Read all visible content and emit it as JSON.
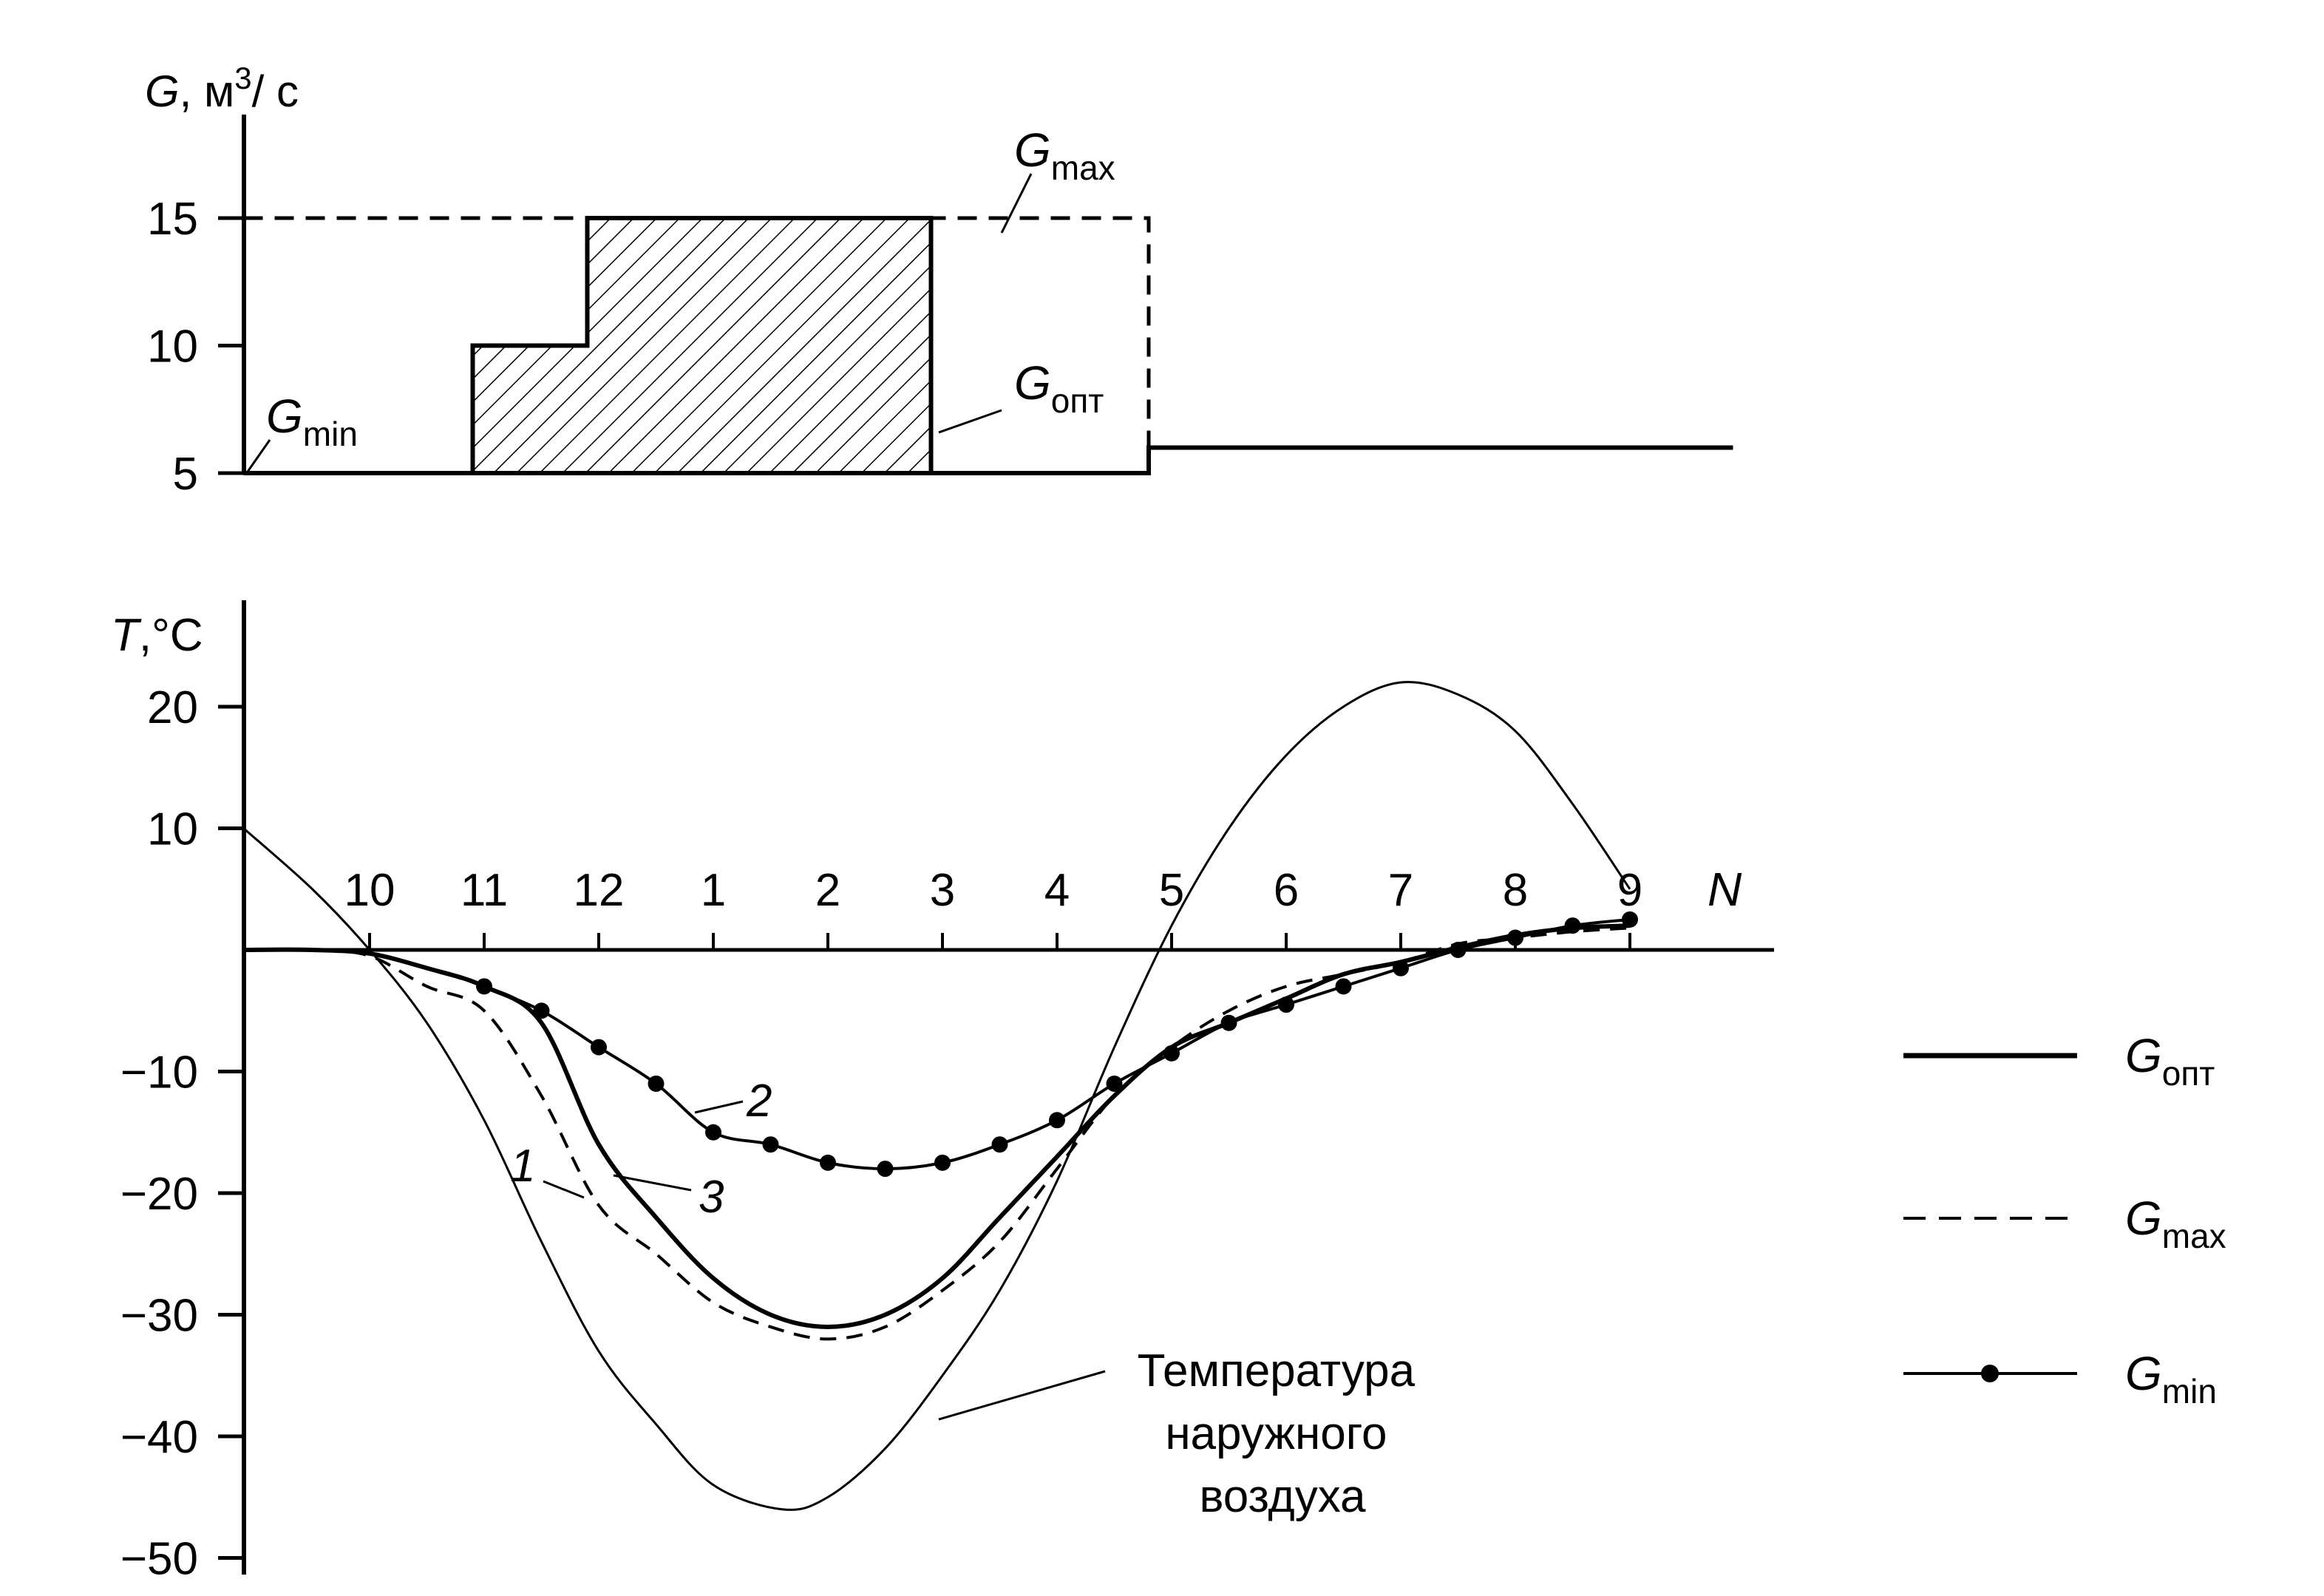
{
  "chart_data": [
    {
      "type": "line",
      "ylabel": {
        "symbol": "G",
        "unit_base": ", м",
        "unit_sup": "3",
        "unit_end": "/ с"
      },
      "yticks": [
        5,
        10,
        15
      ],
      "ylim": [
        5,
        20
      ],
      "x_periods": [
        {
          "label": "10",
          "x": 0.0
        },
        {
          "label": "11",
          "x": 1.0
        },
        {
          "label": "12",
          "x": 2.0
        },
        {
          "label": "1",
          "x": 3.0
        },
        {
          "label": "2",
          "x": 4.0
        },
        {
          "label": "3",
          "x": 5.0
        },
        {
          "label": "4",
          "x": 6.0
        },
        {
          "label": "5",
          "x": 7.0
        },
        {
          "label": "6",
          "x": 8.0
        },
        {
          "label": "7",
          "x": 9.0
        },
        {
          "label": "8",
          "x": 10.0
        },
        {
          "label": "9",
          "x": 11.0
        }
      ],
      "series": [
        {
          "name": "Gmax",
          "style": "dashed",
          "points": [
            [
              -1.1,
              15
            ],
            [
              6.8,
              15
            ],
            [
              6.8,
              5
            ]
          ]
        },
        {
          "name": "Gmin",
          "style": "solid",
          "points": [
            [
              -1.1,
              5
            ],
            [
              6.8,
              5
            ]
          ]
        },
        {
          "name": "Gопт",
          "style": "solid",
          "hatched": true,
          "points": [
            [
              -1.1,
              5
            ],
            [
              0.9,
              5
            ],
            [
              0.9,
              10
            ],
            [
              1.9,
              10
            ],
            [
              1.9,
              15
            ],
            [
              4.9,
              15
            ],
            [
              4.9,
              5
            ],
            [
              6.8,
              5
            ],
            [
              6.8,
              6
            ],
            [
              11.9,
              6
            ]
          ]
        }
      ],
      "annotations": {
        "gmax": {
          "base": "G",
          "sub": "max"
        },
        "gopt": {
          "base": "G",
          "sub": "опт"
        },
        "gmin": {
          "base": "G",
          "sub": "min"
        }
      }
    },
    {
      "type": "line",
      "ylabel": {
        "symbol": "T",
        "unit": ",°C"
      },
      "xlabel": "N",
      "yticks": [
        20,
        10,
        -10,
        -20,
        -30,
        -40,
        -50
      ],
      "ylim": [
        -50,
        25
      ],
      "xticks": [
        {
          "label": "10",
          "x": 0
        },
        {
          "label": "11",
          "x": 1
        },
        {
          "label": "12",
          "x": 2
        },
        {
          "label": "1",
          "x": 3
        },
        {
          "label": "2",
          "x": 4
        },
        {
          "label": "3",
          "x": 5
        },
        {
          "label": "4",
          "x": 6
        },
        {
          "label": "5",
          "x": 7
        },
        {
          "label": "6",
          "x": 8
        },
        {
          "label": "7",
          "x": 9
        },
        {
          "label": "8",
          "x": 10
        },
        {
          "label": "9",
          "x": 11
        }
      ],
      "series": [
        {
          "name": "Температура наружного воздуха",
          "style": "thin",
          "points": [
            [
              -1.1,
              10
            ],
            [
              -0.5,
              5
            ],
            [
              0,
              0
            ],
            [
              0.5,
              -6
            ],
            [
              1,
              -14
            ],
            [
              1.5,
              -24
            ],
            [
              2,
              -33
            ],
            [
              2.5,
              -39
            ],
            [
              3,
              -44
            ],
            [
              3.6,
              -46
            ],
            [
              4,
              -45
            ],
            [
              4.5,
              -41
            ],
            [
              5,
              -35
            ],
            [
              5.5,
              -28
            ],
            [
              6,
              -19
            ],
            [
              6.5,
              -8
            ],
            [
              7,
              2
            ],
            [
              7.5,
              10
            ],
            [
              8,
              16
            ],
            [
              8.5,
              20
            ],
            [
              9,
              22
            ],
            [
              9.5,
              21
            ],
            [
              10,
              18
            ],
            [
              10.5,
              12
            ],
            [
              11,
              5
            ]
          ]
        },
        {
          "name": "Gопт",
          "label": "3",
          "style": "solid",
          "points": [
            [
              -1.1,
              0
            ],
            [
              -0.5,
              0
            ],
            [
              0,
              -0.3
            ],
            [
              0.5,
              -1.5
            ],
            [
              1,
              -3
            ],
            [
              1.5,
              -6
            ],
            [
              2,
              -16
            ],
            [
              2.5,
              -22
            ],
            [
              3,
              -27
            ],
            [
              3.5,
              -30
            ],
            [
              4,
              -31
            ],
            [
              4.5,
              -30
            ],
            [
              5,
              -27
            ],
            [
              5.5,
              -22
            ],
            [
              6,
              -17
            ],
            [
              6.5,
              -12
            ],
            [
              7,
              -8
            ],
            [
              7.5,
              -6
            ],
            [
              8,
              -4
            ],
            [
              8.5,
              -2
            ],
            [
              9,
              -1
            ],
            [
              9.5,
              0.2
            ],
            [
              10,
              1.2
            ],
            [
              10.5,
              1.8
            ],
            [
              11,
              2
            ]
          ]
        },
        {
          "name": "Gmax",
          "label": "1",
          "style": "dashed",
          "points": [
            [
              -1.1,
              0
            ],
            [
              -0.5,
              0
            ],
            [
              0,
              -0.5
            ],
            [
              0.5,
              -3
            ],
            [
              1,
              -5
            ],
            [
              1.5,
              -12
            ],
            [
              2,
              -21
            ],
            [
              2.5,
              -25
            ],
            [
              3,
              -29
            ],
            [
              3.5,
              -31
            ],
            [
              4,
              -32
            ],
            [
              4.5,
              -31
            ],
            [
              5,
              -28
            ],
            [
              5.5,
              -24
            ],
            [
              6,
              -18
            ],
            [
              6.5,
              -12
            ],
            [
              7,
              -8
            ],
            [
              7.5,
              -5
            ],
            [
              8,
              -3
            ],
            [
              8.5,
              -2
            ],
            [
              9,
              -1
            ],
            [
              9.5,
              0.5
            ],
            [
              10,
              1
            ],
            [
              10.5,
              1.5
            ],
            [
              11,
              1.8
            ]
          ]
        },
        {
          "name": "Gmin",
          "label": "2",
          "style": "dotted",
          "points": [
            [
              1,
              -3
            ],
            [
              1.5,
              -5
            ],
            [
              2,
              -8
            ],
            [
              2.5,
              -11
            ],
            [
              3,
              -15
            ],
            [
              3.5,
              -16
            ],
            [
              4,
              -17.5
            ],
            [
              4.5,
              -18
            ],
            [
              5,
              -17.5
            ],
            [
              5.5,
              -16
            ],
            [
              6,
              -14
            ],
            [
              6.5,
              -11
            ],
            [
              7,
              -8.5
            ],
            [
              7.5,
              -6
            ],
            [
              8,
              -4.5
            ],
            [
              8.5,
              -3
            ],
            [
              9,
              -1.5
            ],
            [
              9.5,
              0
            ],
            [
              10,
              1
            ],
            [
              10.5,
              2
            ],
            [
              11,
              2.5
            ]
          ]
        }
      ],
      "annotations": {
        "curve1": "1",
        "curve2": "2",
        "curve3": "3",
        "outdoor_lines": [
          "Температура",
          "наружного",
          "воздуха"
        ]
      }
    }
  ],
  "legend": [
    {
      "base": "G",
      "sub": "опт",
      "style": "solid"
    },
    {
      "base": "G",
      "sub": "max",
      "style": "dashed"
    },
    {
      "base": "G",
      "sub": "min",
      "style": "dotted"
    }
  ]
}
